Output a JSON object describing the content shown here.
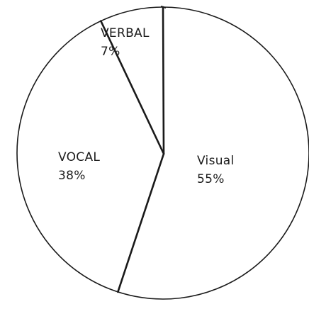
{
  "chart_data": {
    "type": "pie",
    "title": "",
    "slices": [
      {
        "label": "Visual",
        "value": 55,
        "display": "55%"
      },
      {
        "label": "VOCAL",
        "value": 38,
        "display": "38%"
      },
      {
        "label": "VERBAL",
        "value": 7,
        "display": "7%"
      }
    ],
    "start": "top",
    "direction": "clockwise",
    "colors": {
      "fill": "#ffffff",
      "stroke": "#1a1a1a"
    }
  }
}
